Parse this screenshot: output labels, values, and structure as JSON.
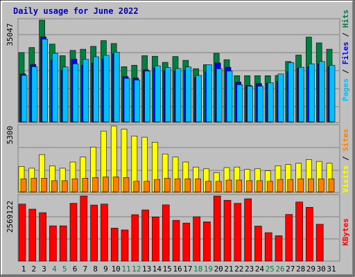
{
  "title": "Daily usage for June 2022",
  "colors": {
    "background": "#C0C0C0",
    "title": "#0000C0",
    "hits": "#008040",
    "files": "#0000FF",
    "pages": "#00C0FF",
    "visits": "#FFFF00",
    "sites": "#FF8000",
    "kbytes": "#FF0000",
    "weekend_label": "#008040",
    "label_text": "#000000"
  },
  "chart_data": [
    {
      "type": "bar",
      "title": "Daily usage for June 2022",
      "axis_max_label": "35047",
      "ylim": [
        0,
        35047
      ],
      "categories": [
        "1",
        "2",
        "3",
        "4",
        "5",
        "6",
        "7",
        "8",
        "9",
        "10",
        "11",
        "12",
        "13",
        "14",
        "15",
        "16",
        "17",
        "18",
        "19",
        "20",
        "21",
        "22",
        "23",
        "24",
        "25",
        "26",
        "27",
        "28",
        "29",
        "30",
        "31"
      ],
      "weekend_days": [
        "4",
        "5",
        "11",
        "12",
        "18",
        "19",
        "25",
        "26"
      ],
      "legend": {
        "position": "right",
        "entries": [
          {
            "name": "Hits",
            "color": "#008040"
          },
          {
            "name": "Files",
            "color": "#0000FF"
          },
          {
            "name": "Pages",
            "color": "#00C0FF"
          }
        ],
        "separator": " / "
      },
      "series": [
        {
          "name": "Hits",
          "values": [
            23900,
            25600,
            35047,
            26800,
            22800,
            24600,
            25000,
            26000,
            28000,
            27000,
            19000,
            19500,
            22800,
            22600,
            20500,
            22500,
            21200,
            18300,
            19700,
            23600,
            21400,
            15900,
            15900,
            15900,
            15900,
            16000,
            20800,
            23000,
            29200,
            27200,
            25000
          ]
        },
        {
          "name": "Files",
          "values": [
            16500,
            19800,
            29300,
            21300,
            17800,
            21600,
            19500,
            20300,
            21700,
            23500,
            15600,
            15100,
            17900,
            18500,
            17700,
            17500,
            17800,
            15300,
            17300,
            20300,
            18800,
            13700,
            12600,
            13200,
            13300,
            14000,
            17300,
            18500,
            19000,
            20000,
            19000
          ]
        },
        {
          "name": "Pages",
          "values": [
            16000,
            19000,
            28500,
            23600,
            18900,
            20000,
            21500,
            22400,
            22900,
            24000,
            15000,
            14400,
            17500,
            19300,
            18700,
            18400,
            18900,
            16000,
            19700,
            18300,
            17500,
            12800,
            12300,
            12300,
            13500,
            16500,
            20400,
            18800,
            20000,
            20800,
            19500
          ]
        }
      ]
    },
    {
      "type": "bar",
      "axis_max_label": "5300",
      "ylim": [
        0,
        5300
      ],
      "categories": [
        "1",
        "2",
        "3",
        "4",
        "5",
        "6",
        "7",
        "8",
        "9",
        "10",
        "11",
        "12",
        "13",
        "14",
        "15",
        "16",
        "17",
        "18",
        "19",
        "20",
        "21",
        "22",
        "23",
        "24",
        "25",
        "26",
        "27",
        "28",
        "29",
        "30",
        "31"
      ],
      "legend": {
        "position": "right",
        "entries": [
          {
            "name": "Sites",
            "color": "#FF8000"
          },
          {
            "name": "Visits",
            "color": "#FFFF00"
          }
        ],
        "separator": " / "
      },
      "series": [
        {
          "name": "Visits",
          "values": [
            2050,
            1900,
            3000,
            2100,
            1900,
            2400,
            2800,
            3600,
            4900,
            5300,
            5050,
            4500,
            4400,
            4000,
            3050,
            2800,
            2400,
            2000,
            1850,
            1550,
            1950,
            2000,
            1800,
            1850,
            1700,
            2100,
            2200,
            2300,
            2600,
            2450,
            2300
          ]
        },
        {
          "name": "Sites",
          "values": [
            1050,
            1100,
            1100,
            900,
            900,
            1050,
            1100,
            1150,
            1200,
            1200,
            1150,
            850,
            850,
            1000,
            1100,
            1050,
            1050,
            1050,
            850,
            850,
            950,
            950,
            900,
            900,
            850,
            1000,
            1000,
            1050,
            1050,
            1050,
            1050
          ]
        }
      ]
    },
    {
      "type": "bar",
      "axis_max_label": "2569122",
      "ylim": [
        0,
        2569122
      ],
      "categories": [
        "1",
        "2",
        "3",
        "4",
        "5",
        "6",
        "7",
        "8",
        "9",
        "10",
        "11",
        "12",
        "13",
        "14",
        "15",
        "16",
        "17",
        "18",
        "19",
        "20",
        "21",
        "22",
        "23",
        "24",
        "25",
        "26",
        "27",
        "28",
        "29",
        "30",
        "31"
      ],
      "legend": {
        "position": "right",
        "entries": [
          {
            "name": "KBytes",
            "color": "#FF0000"
          }
        ],
        "separator": ""
      },
      "series": [
        {
          "name": "KBytes",
          "values": [
            2250000,
            2050000,
            1910000,
            1390000,
            1390000,
            2280000,
            2569122,
            2210000,
            2250000,
            1300000,
            1230000,
            1830000,
            2020000,
            1740000,
            2220000,
            1610000,
            1500000,
            1750000,
            1550000,
            2569122,
            2400000,
            2280000,
            2460000,
            1380000,
            1120000,
            1000000,
            1840000,
            2330000,
            2120000,
            1450000,
            0
          ]
        }
      ]
    }
  ]
}
